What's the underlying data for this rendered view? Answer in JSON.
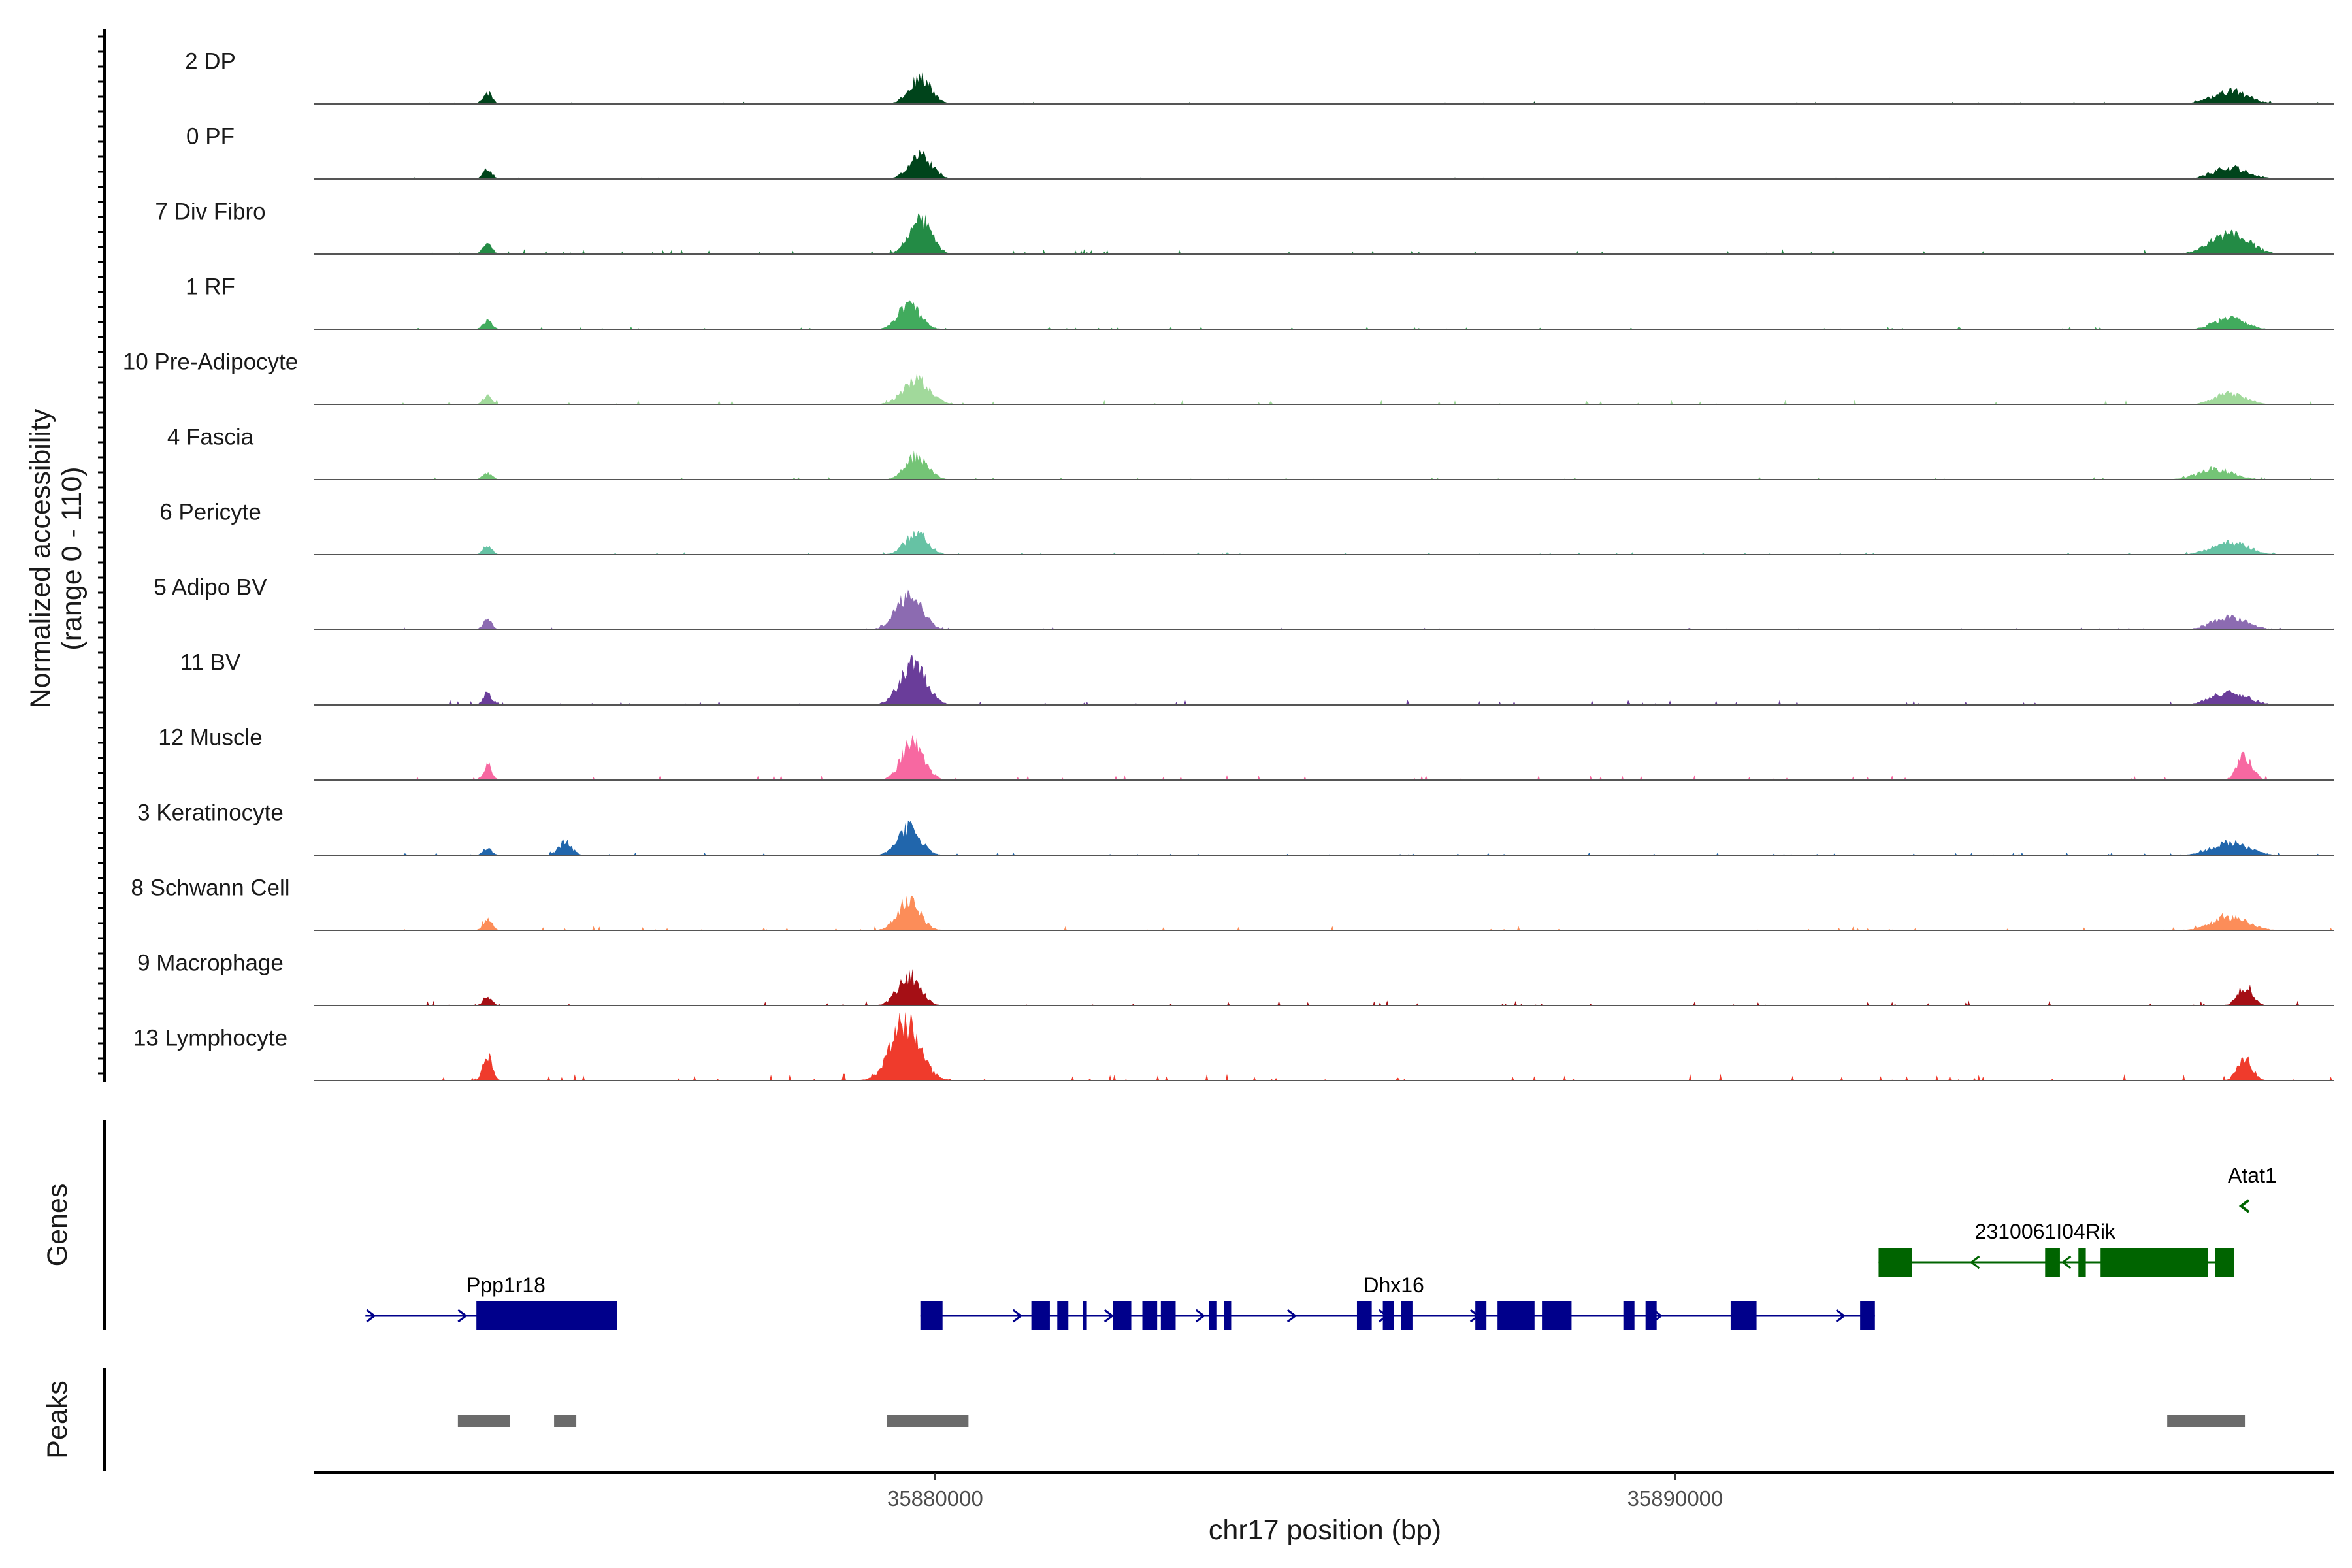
{
  "chart_data": {
    "type": "area",
    "title": "",
    "region": "chr17",
    "xlabel": "chr17 position (bp)",
    "ylabel": "Normalized accessibility",
    "ylabel_range": "(range 0 - 110)",
    "ylim": [
      0,
      110
    ],
    "xlim": [
      35871600,
      35898900
    ],
    "xticks": [
      35880000,
      35890000
    ],
    "xtick_labels": [
      "35880000",
      "35890000"
    ],
    "tracks": [
      {
        "name": "2 DP",
        "color": "#00441b",
        "peaks": [
          [
            35873950,
            16,
            60
          ],
          [
            35879800,
            36,
            150
          ],
          [
            35897500,
            18,
            240
          ]
        ],
        "noise": 3
      },
      {
        "name": "0 PF",
        "color": "#00441b",
        "peaks": [
          [
            35873950,
            14,
            60
          ],
          [
            35879800,
            34,
            150
          ],
          [
            35897500,
            16,
            240
          ]
        ],
        "noise": 2
      },
      {
        "name": "7 Div Fibro",
        "color": "#238b45",
        "peaks": [
          [
            35873950,
            16,
            60
          ],
          [
            35879800,
            48,
            150
          ],
          [
            35897500,
            28,
            260
          ]
        ],
        "noise": 6
      },
      {
        "name": "1 RF",
        "color": "#41ab5d",
        "peaks": [
          [
            35873950,
            12,
            60
          ],
          [
            35879650,
            34,
            150
          ],
          [
            35897500,
            16,
            200
          ]
        ],
        "noise": 3
      },
      {
        "name": "10 Pre-Adipocyte",
        "color": "#a1d99b",
        "peaks": [
          [
            35873950,
            12,
            60
          ],
          [
            35879750,
            34,
            180
          ],
          [
            35897500,
            16,
            200
          ]
        ],
        "noise": 5
      },
      {
        "name": "4 Fascia",
        "color": "#74c476",
        "peaks": [
          [
            35873950,
            10,
            60
          ],
          [
            35879750,
            32,
            150
          ],
          [
            35897300,
            14,
            240
          ]
        ],
        "noise": 3
      },
      {
        "name": "6 Pericyte",
        "color": "#66c2a4",
        "peaks": [
          [
            35873950,
            14,
            60
          ],
          [
            35879750,
            30,
            150
          ],
          [
            35897500,
            18,
            240
          ]
        ],
        "noise": 3
      },
      {
        "name": "5 Adipo BV",
        "color": "#8c6bb1",
        "peaks": [
          [
            35873950,
            14,
            60
          ],
          [
            35879650,
            46,
            180
          ],
          [
            35897500,
            18,
            240
          ]
        ],
        "noise": 3
      },
      {
        "name": "11 BV",
        "color": "#6a3d9a",
        "peaks": [
          [
            35873950,
            16,
            60
          ],
          [
            35879700,
            54,
            180
          ],
          [
            35897500,
            18,
            240
          ]
        ],
        "noise": 6
      },
      {
        "name": "12 Muscle",
        "color": "#f768a1",
        "peaks": [
          [
            35873950,
            20,
            60
          ],
          [
            35879700,
            54,
            150
          ],
          [
            35897700,
            34,
            100
          ]
        ],
        "noise": 6
      },
      {
        "name": "3 Keratinocyte",
        "color": "#2166ac",
        "peaks": [
          [
            35873950,
            10,
            60
          ],
          [
            35875000,
            18,
            90
          ],
          [
            35879650,
            38,
            150
          ],
          [
            35897500,
            18,
            240
          ]
        ],
        "noise": 3
      },
      {
        "name": "8 Schwann Cell",
        "color": "#fc8d59",
        "peaks": [
          [
            35873950,
            16,
            60
          ],
          [
            35879650,
            42,
            150
          ],
          [
            35897500,
            18,
            240
          ]
        ],
        "noise": 5
      },
      {
        "name": "9 Macrophage",
        "color": "#a50f15",
        "peaks": [
          [
            35873950,
            12,
            60
          ],
          [
            35879650,
            42,
            150
          ],
          [
            35897700,
            26,
            100
          ]
        ],
        "noise": 6
      },
      {
        "name": "13 Lymphocyte",
        "color": "#ef3b2c",
        "peaks": [
          [
            35873950,
            34,
            60
          ],
          [
            35879600,
            80,
            200
          ],
          [
            35897700,
            30,
            100
          ]
        ],
        "noise": 8
      }
    ],
    "genes_label": "Genes",
    "peaks_label": "Peaks",
    "genes": [
      {
        "name": "Ppp1r18",
        "strand": "+",
        "color": "#00008b",
        "start": 35872300,
        "end": 35875700,
        "row": 2,
        "exons": [
          [
            35873800,
            35875700
          ]
        ]
      },
      {
        "name": "Dhx16",
        "strand": "+",
        "color": "#00008b",
        "start": 35879800,
        "end": 35892700,
        "row": 2,
        "exons": [
          [
            35879800,
            35880100
          ],
          [
            35881300,
            35881550
          ],
          [
            35881650,
            35881800
          ],
          [
            35882000,
            35882050
          ],
          [
            35882400,
            35882650
          ],
          [
            35882800,
            35883000
          ],
          [
            35883050,
            35883250
          ],
          [
            35883700,
            35883800
          ],
          [
            35883900,
            35884000
          ],
          [
            35885700,
            35885900
          ],
          [
            35886050,
            35886200
          ],
          [
            35886300,
            35886450
          ],
          [
            35887300,
            35887450
          ],
          [
            35887600,
            35888100
          ],
          [
            35888200,
            35888600
          ],
          [
            35889300,
            35889450
          ],
          [
            35889600,
            35889750
          ],
          [
            35890750,
            35891100
          ],
          [
            35892500,
            35892700
          ]
        ]
      },
      {
        "name": "2310061I04Rik",
        "strand": "-",
        "color": "#006400",
        "start": 35892750,
        "end": 35897550,
        "row": 1,
        "exons": [
          [
            35892750,
            35893200
          ],
          [
            35895000,
            35895200
          ],
          [
            35895450,
            35895550
          ],
          [
            35895750,
            35897200
          ],
          [
            35897300,
            35897550
          ]
        ]
      },
      {
        "name": "Atat1",
        "strand": "-",
        "color": "#006400",
        "start": 35897700,
        "end": 35897850,
        "row": 0,
        "exons": []
      }
    ],
    "peak_regions": [
      [
        35873550,
        35874250
      ],
      [
        35874850,
        35875150
      ],
      [
        35879350,
        35880450
      ],
      [
        35896650,
        35897700
      ]
    ]
  }
}
